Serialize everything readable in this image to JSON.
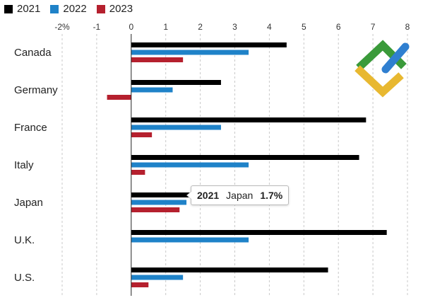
{
  "chart_data": {
    "type": "bar",
    "orientation": "horizontal",
    "categories": [
      "Canada",
      "Germany",
      "France",
      "Italy",
      "Japan",
      "U.K.",
      "U.S."
    ],
    "series": [
      {
        "name": "2021",
        "color": "#000000",
        "values": [
          4.5,
          2.6,
          6.8,
          6.6,
          1.7,
          7.4,
          5.7
        ]
      },
      {
        "name": "2022",
        "color": "#1f82c8",
        "values": [
          3.4,
          1.2,
          2.6,
          3.4,
          1.6,
          3.4,
          1.5
        ]
      },
      {
        "name": "2023",
        "color": "#b5202e",
        "values": [
          1.5,
          -0.7,
          0.6,
          0.4,
          1.4,
          0.0,
          0.5
        ]
      }
    ],
    "xlim": [
      -2,
      8
    ],
    "xticks": [
      -2,
      -1,
      0,
      1,
      2,
      3,
      4,
      5,
      6,
      7,
      8
    ],
    "xtick_labels": [
      "-2%",
      "-1",
      "0",
      "1",
      "2",
      "3",
      "4",
      "5",
      "6",
      "7",
      "8"
    ],
    "grid": "vertical dashed",
    "legend": "top-left",
    "title": "",
    "xlabel": "",
    "ylabel": ""
  },
  "tooltip": {
    "year": "2021",
    "country": "Japan",
    "value": "1.7%"
  },
  "logo": {
    "colors": [
      "#3a9a3a",
      "#e8b830",
      "#2f7fd0"
    ],
    "icon": "brand-logo-icon"
  }
}
